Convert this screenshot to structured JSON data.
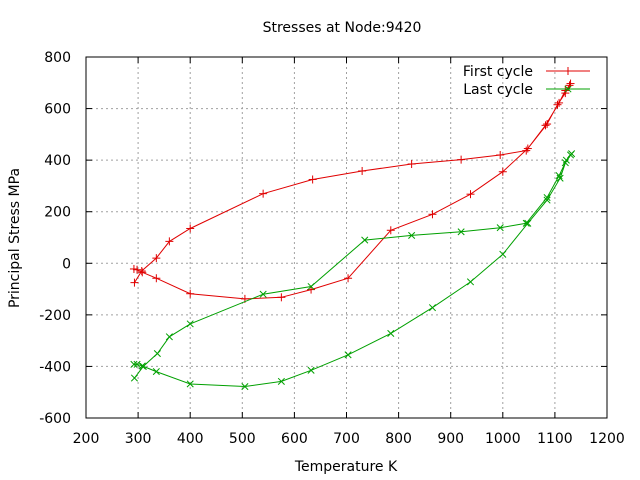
{
  "chart_data": {
    "type": "line",
    "title": "Stresses at Node:9420",
    "xlabel": "Temperature K",
    "ylabel": "Principal Stress MPa",
    "xlim": [
      200,
      1200
    ],
    "ylim": [
      -600,
      800
    ],
    "xticks": [
      200,
      300,
      400,
      500,
      600,
      700,
      800,
      900,
      1000,
      1100,
      1200
    ],
    "yticks": [
      -600,
      -400,
      -200,
      0,
      200,
      400,
      600,
      800
    ],
    "grid": true,
    "legend_position": "top-right",
    "series": [
      {
        "name": "First cycle",
        "color": "#e00000",
        "marker": "plus",
        "points": [
          [
            293,
            -75
          ],
          [
            307,
            -30
          ],
          [
            335,
            20
          ],
          [
            360,
            85
          ],
          [
            400,
            135
          ],
          [
            540,
            270
          ],
          [
            635,
            325
          ],
          [
            730,
            358
          ],
          [
            825,
            385
          ],
          [
            920,
            402
          ],
          [
            995,
            420
          ],
          [
            1045,
            437
          ],
          [
            1085,
            540
          ],
          [
            1105,
            615
          ],
          [
            1120,
            660
          ],
          [
            1130,
            697
          ],
          [
            1128,
            690
          ],
          [
            1120,
            670
          ],
          [
            1108,
            622
          ],
          [
            1082,
            535
          ],
          [
            1048,
            445
          ],
          [
            1000,
            355
          ],
          [
            938,
            268
          ],
          [
            865,
            190
          ],
          [
            785,
            128
          ],
          [
            703,
            -58
          ],
          [
            632,
            -102
          ],
          [
            575,
            -132
          ],
          [
            505,
            -138
          ],
          [
            400,
            -118
          ],
          [
            335,
            -58
          ],
          [
            308,
            -35
          ],
          [
            298,
            -25
          ],
          [
            292,
            -22
          ]
        ]
      },
      {
        "name": "Last cycle",
        "color": "#00a000",
        "marker": "cross",
        "points": [
          [
            293,
            -445
          ],
          [
            310,
            -400
          ],
          [
            337,
            -350
          ],
          [
            360,
            -285
          ],
          [
            400,
            -235
          ],
          [
            540,
            -120
          ],
          [
            632,
            -90
          ],
          [
            735,
            90
          ],
          [
            825,
            108
          ],
          [
            920,
            122
          ],
          [
            995,
            138
          ],
          [
            1045,
            155
          ],
          [
            1085,
            255
          ],
          [
            1108,
            340
          ],
          [
            1120,
            390
          ],
          [
            1132,
            425
          ],
          [
            1130,
            420
          ],
          [
            1122,
            400
          ],
          [
            1110,
            330
          ],
          [
            1085,
            245
          ],
          [
            1048,
            155
          ],
          [
            1000,
            35
          ],
          [
            938,
            -72
          ],
          [
            865,
            -172
          ],
          [
            785,
            -272
          ],
          [
            703,
            -355
          ],
          [
            632,
            -415
          ],
          [
            575,
            -458
          ],
          [
            505,
            -478
          ],
          [
            400,
            -468
          ],
          [
            335,
            -420
          ],
          [
            308,
            -398
          ],
          [
            298,
            -392
          ],
          [
            292,
            -392
          ]
        ]
      }
    ]
  }
}
